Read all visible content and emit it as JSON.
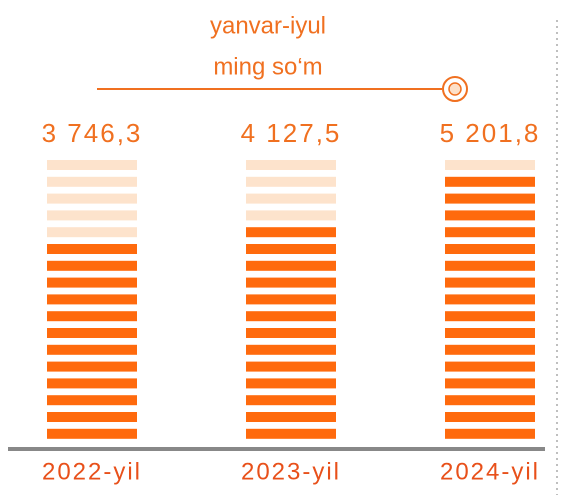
{
  "chart_data": {
    "type": "bar",
    "subtitle": [
      "yanvar-iyul",
      "ming so‘m"
    ],
    "categories": [
      "2022-yil",
      "2023-yil",
      "2024-yil"
    ],
    "values": [
      3746.3,
      4127.5,
      5201.8
    ],
    "value_labels": [
      "3 746,3",
      "4 127,5",
      "5 201,8"
    ],
    "color": "#ff6a0d"
  }
}
